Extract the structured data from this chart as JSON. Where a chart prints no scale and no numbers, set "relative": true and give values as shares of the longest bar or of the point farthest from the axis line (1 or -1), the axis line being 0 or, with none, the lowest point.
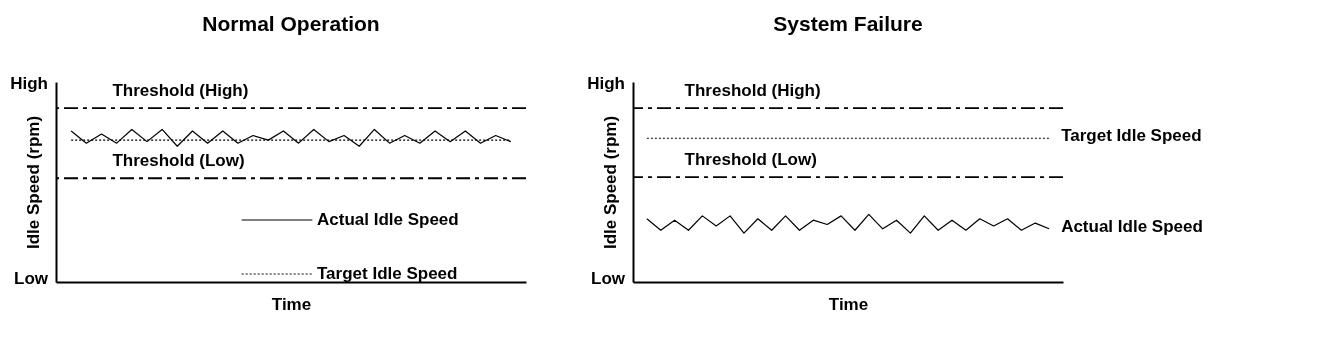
{
  "chart_data": [
    {
      "type": "line",
      "title": "Normal Operation",
      "xlabel": "Time",
      "ylabel": "Idle Speed (rpm)",
      "categories": [
        null,
        null,
        null,
        null,
        null,
        null,
        null,
        null,
        null,
        null,
        null,
        null,
        null,
        null,
        null,
        null,
        null,
        null,
        null,
        null,
        null,
        null,
        null,
        null,
        null,
        null,
        null,
        null,
        null,
        null
      ],
      "relative": true,
      "tick_labels": false,
      "legend": "bottom right",
      "annotations": [
        "High",
        "Low"
      ],
      "series": [
        {
          "name": "Actual Idle Speed",
          "color": "#000000",
          "line_style": "solid",
          "values": [
            0.99,
            0.91,
            0.97,
            0.91,
            1,
            0.92,
            1,
            0.89,
            0.99,
            0.91,
            0.99,
            0.91,
            0.96,
            0.93,
            0.99,
            0.91,
            1,
            0.92,
            0.96,
            0.89,
            1,
            0.91,
            0.96,
            0.91,
            0.99,
            0.92,
            0.99,
            0.91,
            0.96,
            0.92
          ]
        },
        {
          "name": "Target Idle Speed",
          "color": "#000000",
          "line_style": "dotted",
          "values": [
            0.93,
            0.93,
            0.93,
            0.93,
            0.93,
            0.93,
            0.93,
            0.93,
            0.93,
            0.93,
            0.93,
            0.93,
            0.93,
            0.93,
            0.93,
            0.93,
            0.93,
            0.93,
            0.93,
            0.93,
            0.93,
            0.93,
            0.93,
            0.93,
            0.93,
            0.93,
            0.93,
            0.93,
            0.93,
            0.93
          ]
        }
      ],
      "ref_lines": [
        {
          "axis": "y",
          "value": 1.14,
          "label": "Threshold (High)",
          "color": "#000000",
          "line_style": "dashed"
        },
        {
          "axis": "y",
          "value": 0.68,
          "label": "Threshold (Low)",
          "color": "#000000",
          "line_style": "dashed"
        }
      ]
    },
    {
      "type": "line",
      "title": "System Failure",
      "xlabel": "Time",
      "ylabel": "Idle Speed (rpm)",
      "categories": [
        null,
        null,
        null,
        null,
        null,
        null,
        null,
        null,
        null,
        null,
        null,
        null,
        null,
        null,
        null,
        null,
        null,
        null,
        null,
        null,
        null,
        null,
        null,
        null,
        null,
        null,
        null,
        null,
        null,
        null
      ],
      "relative": true,
      "tick_labels": false,
      "annotations": [
        "High",
        "Low"
      ],
      "series": [
        {
          "name": "Actual Idle Speed",
          "color": "#000000",
          "line_style": "solid",
          "values": [
            0.44,
            0.36,
            0.43,
            0.36,
            0.46,
            0.39,
            0.46,
            0.34,
            0.44,
            0.36,
            0.46,
            0.36,
            0.43,
            0.4,
            0.46,
            0.36,
            0.47,
            0.37,
            0.43,
            0.34,
            0.46,
            0.36,
            0.43,
            0.36,
            0.44,
            0.39,
            0.44,
            0.36,
            0.41,
            0.37
          ]
        },
        {
          "name": "Target Idle Speed",
          "color": "#000000",
          "line_style": "dotted",
          "values": [
            1,
            1,
            1,
            1,
            1,
            1,
            1,
            1,
            1,
            1,
            1,
            1,
            1,
            1,
            1,
            1,
            1,
            1,
            1,
            1,
            1,
            1,
            1,
            1,
            1,
            1,
            1,
            1,
            1,
            1
          ]
        }
      ],
      "ref_lines": [
        {
          "axis": "y",
          "value": 1.21,
          "label": "Threshold (High)",
          "color": "#000000",
          "line_style": "dashed"
        },
        {
          "axis": "y",
          "value": 0.73,
          "label": "Threshold (Low)",
          "color": "#000000",
          "line_style": "dashed"
        }
      ]
    }
  ]
}
